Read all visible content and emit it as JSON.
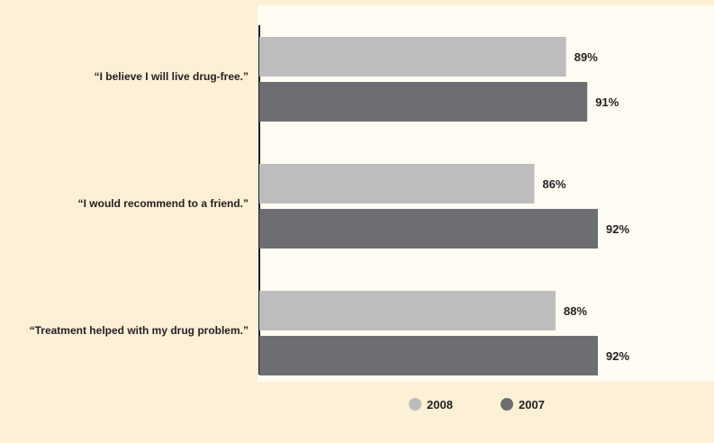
{
  "chart_data": {
    "type": "bar",
    "orientation": "horizontal",
    "categories": [
      "“I believe I will live drug-free.”",
      "“I would recommend to a friend.”",
      "“Treatment helped with my drug problem.”"
    ],
    "series": [
      {
        "name": "2008",
        "values": [
          89,
          86,
          88
        ],
        "color": "#bdbdbd"
      },
      {
        "name": "2007",
        "values": [
          91,
          92,
          92
        ],
        "color": "#6d6e71"
      }
    ],
    "value_suffix": "%",
    "title": "",
    "xlabel": "",
    "ylabel": "",
    "xlim": [
      60,
      100
    ],
    "grid": false,
    "legend_position": "bottom",
    "colors": {
      "page_background": "#fcf0d6",
      "plot_background": "#fffcf3",
      "axis": "#1a1a1a",
      "text": "#231f20"
    }
  }
}
